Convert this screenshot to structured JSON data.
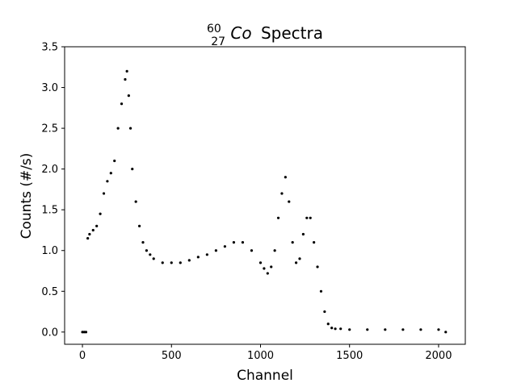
{
  "chart_data": {
    "type": "scatter",
    "title": {
      "mass_number": "60",
      "atomic_number": "27",
      "element": "Co",
      "text": "Spectra"
    },
    "xlabel": "Channel",
    "ylabel": "Counts (#/s)",
    "xlim": [
      -100,
      2150
    ],
    "ylim": [
      -0.15,
      3.5
    ],
    "x_ticks": [
      0,
      500,
      1000,
      1500,
      2000
    ],
    "x_tick_labels": [
      "0",
      "500",
      "1000",
      "1500",
      "2000"
    ],
    "y_ticks": [
      0.0,
      0.5,
      1.0,
      1.5,
      2.0,
      2.5,
      3.0,
      3.5
    ],
    "y_tick_labels": [
      "0.0",
      "0.5",
      "1.0",
      "1.5",
      "2.0",
      "2.5",
      "3.0",
      "3.5"
    ],
    "grid": false,
    "marker_color": "#000000",
    "series": [
      {
        "x": [
          0,
          10,
          20,
          30,
          40,
          60,
          80,
          100,
          120,
          140,
          160,
          180,
          200,
          220,
          240,
          250,
          260,
          270,
          280,
          300,
          320,
          340,
          360,
          380,
          400,
          450,
          500,
          550,
          600,
          650,
          700,
          750,
          800,
          850,
          900,
          950,
          1000,
          1020,
          1040,
          1060,
          1080,
          1100,
          1120,
          1140,
          1160,
          1180,
          1200,
          1220,
          1240,
          1260,
          1280,
          1300,
          1320,
          1340,
          1360,
          1380,
          1400,
          1420,
          1450,
          1500,
          1600,
          1700,
          1800,
          1900,
          2000,
          2040
        ],
        "y": [
          0.0,
          0.0,
          0.0,
          1.15,
          1.2,
          1.25,
          1.3,
          1.45,
          1.7,
          1.85,
          1.95,
          2.1,
          2.5,
          2.8,
          3.1,
          3.2,
          2.9,
          2.5,
          2.0,
          1.6,
          1.3,
          1.1,
          1.0,
          0.95,
          0.9,
          0.85,
          0.85,
          0.85,
          0.88,
          0.92,
          0.95,
          1.0,
          1.05,
          1.1,
          1.1,
          1.0,
          0.85,
          0.78,
          0.72,
          0.8,
          1.0,
          1.4,
          1.7,
          1.9,
          1.6,
          1.1,
          0.85,
          0.9,
          1.2,
          1.4,
          1.4,
          1.1,
          0.8,
          0.5,
          0.25,
          0.1,
          0.05,
          0.04,
          0.04,
          0.03,
          0.03,
          0.03,
          0.03,
          0.03,
          0.03,
          0.0
        ]
      }
    ]
  }
}
